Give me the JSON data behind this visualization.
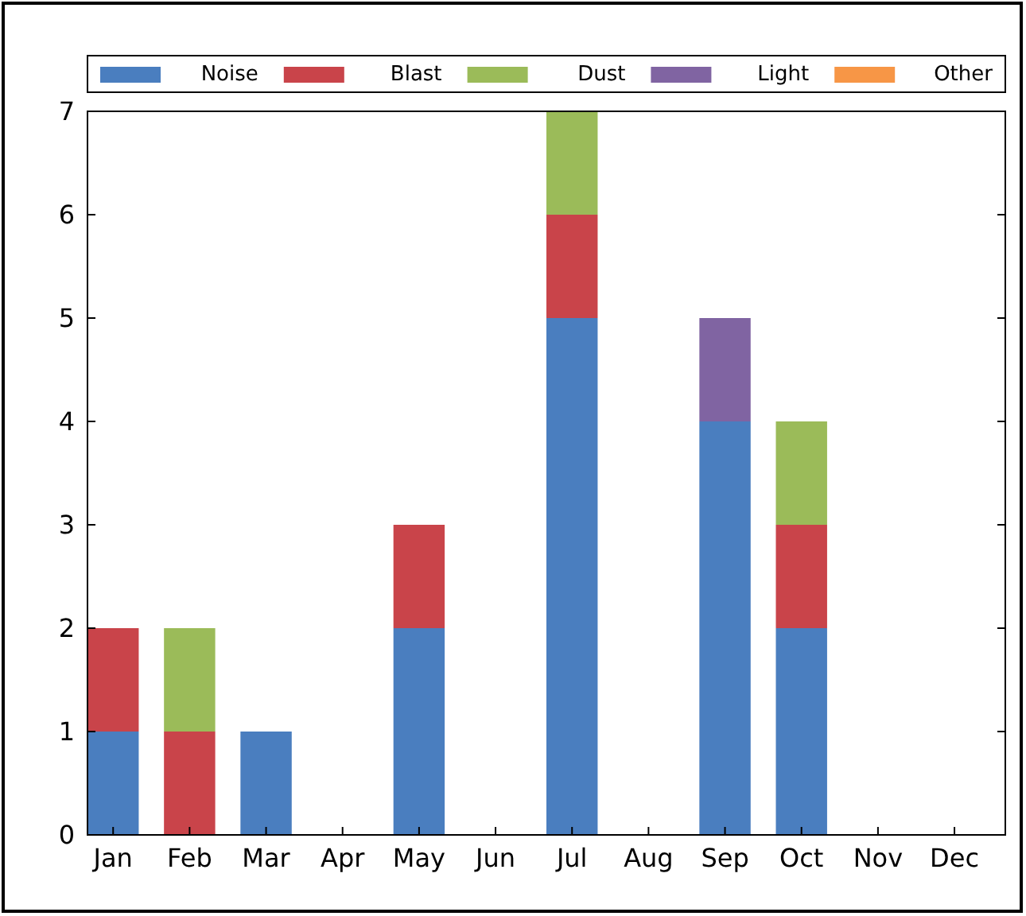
{
  "chart_data": {
    "type": "bar",
    "stacked": true,
    "categories": [
      "Jan",
      "Feb",
      "Mar",
      "Apr",
      "May",
      "Jun",
      "Jul",
      "Aug",
      "Sep",
      "Oct",
      "Nov",
      "Dec"
    ],
    "series": [
      {
        "name": "Noise",
        "color": "#4a7ebf",
        "values": [
          1,
          0,
          1,
          0,
          2,
          0,
          5,
          0,
          4,
          2,
          0,
          0
        ]
      },
      {
        "name": "Blast",
        "color": "#c9444a",
        "values": [
          1,
          1,
          0,
          0,
          1,
          0,
          1,
          0,
          0,
          1,
          0,
          0
        ]
      },
      {
        "name": "Dust",
        "color": "#9bbb59",
        "values": [
          0,
          1,
          0,
          0,
          0,
          0,
          1,
          0,
          0,
          1,
          0,
          0
        ]
      },
      {
        "name": "Light",
        "color": "#8064a2",
        "values": [
          0,
          0,
          0,
          0,
          0,
          0,
          0,
          0,
          1,
          0,
          0,
          0
        ]
      },
      {
        "name": "Other",
        "color": "#f79646",
        "values": [
          0,
          0,
          0,
          0,
          0,
          0,
          0,
          0,
          0,
          0,
          0,
          0
        ]
      }
    ],
    "ylim": [
      0,
      7
    ],
    "yticks": [
      0,
      1,
      2,
      3,
      4,
      5,
      6,
      7
    ],
    "grid": false,
    "legend": "top"
  }
}
